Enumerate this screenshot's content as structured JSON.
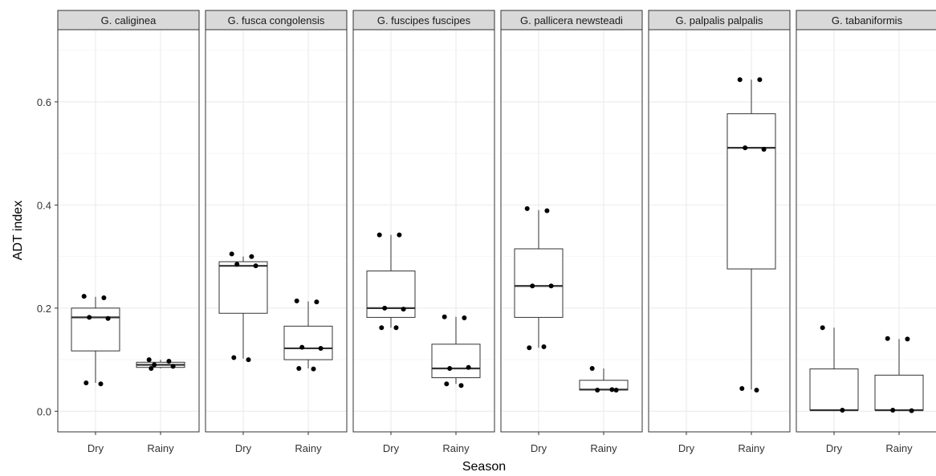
{
  "chart_data": {
    "type": "boxplot",
    "facet_by": "species",
    "xlabel": "Season",
    "ylabel": "ADT index",
    "categories": [
      "Dry",
      "Rainy"
    ],
    "ylim": [
      -0.04,
      0.74
    ],
    "yticks": [
      0.0,
      0.2,
      0.4,
      0.6
    ],
    "ytick_labels": [
      "0.0",
      "0.2",
      "0.4",
      "0.6"
    ],
    "grid": true,
    "theme": "bw",
    "panels": [
      {
        "name": "G. caliginea",
        "boxes": [
          {
            "category": "Dry",
            "min": 0.055,
            "q1": 0.117,
            "median": 0.182,
            "q3": 0.2,
            "max": 0.222
          },
          {
            "category": "Rainy",
            "min": 0.083,
            "q1": 0.085,
            "median": 0.09,
            "q3": 0.095,
            "max": 0.1
          }
        ],
        "points": [
          {
            "category": "Dry",
            "value": 0.223
          },
          {
            "category": "Dry",
            "value": 0.22
          },
          {
            "category": "Dry",
            "value": 0.182
          },
          {
            "category": "Dry",
            "value": 0.18
          },
          {
            "category": "Dry",
            "value": 0.055
          },
          {
            "category": "Dry",
            "value": 0.053
          },
          {
            "category": "Rainy",
            "value": 0.1
          },
          {
            "category": "Rainy",
            "value": 0.097
          },
          {
            "category": "Rainy",
            "value": 0.09
          },
          {
            "category": "Rainy",
            "value": 0.087
          },
          {
            "category": "Rainy",
            "value": 0.083
          }
        ]
      },
      {
        "name": "G. fusca congolensis",
        "boxes": [
          {
            "category": "Dry",
            "min": 0.102,
            "q1": 0.19,
            "median": 0.282,
            "q3": 0.29,
            "max": 0.3
          },
          {
            "category": "Rainy",
            "min": 0.083,
            "q1": 0.1,
            "median": 0.122,
            "q3": 0.165,
            "max": 0.213
          }
        ],
        "points": [
          {
            "category": "Dry",
            "value": 0.305
          },
          {
            "category": "Dry",
            "value": 0.3
          },
          {
            "category": "Dry",
            "value": 0.285
          },
          {
            "category": "Dry",
            "value": 0.282
          },
          {
            "category": "Dry",
            "value": 0.104
          },
          {
            "category": "Dry",
            "value": 0.1
          },
          {
            "category": "Rainy",
            "value": 0.214
          },
          {
            "category": "Rainy",
            "value": 0.212
          },
          {
            "category": "Rainy",
            "value": 0.124
          },
          {
            "category": "Rainy",
            "value": 0.122
          },
          {
            "category": "Rainy",
            "value": 0.083
          },
          {
            "category": "Rainy",
            "value": 0.082
          }
        ]
      },
      {
        "name": "G. fuscipes fuscipes",
        "boxes": [
          {
            "category": "Dry",
            "min": 0.162,
            "q1": 0.182,
            "median": 0.2,
            "q3": 0.272,
            "max": 0.342
          },
          {
            "category": "Rainy",
            "min": 0.053,
            "q1": 0.065,
            "median": 0.083,
            "q3": 0.13,
            "max": 0.183
          }
        ],
        "points": [
          {
            "category": "Dry",
            "value": 0.342
          },
          {
            "category": "Dry",
            "value": 0.342
          },
          {
            "category": "Dry",
            "value": 0.2
          },
          {
            "category": "Dry",
            "value": 0.198
          },
          {
            "category": "Dry",
            "value": 0.162
          },
          {
            "category": "Dry",
            "value": 0.162
          },
          {
            "category": "Rainy",
            "value": 0.183
          },
          {
            "category": "Rainy",
            "value": 0.181
          },
          {
            "category": "Rainy",
            "value": 0.083
          },
          {
            "category": "Rainy",
            "value": 0.085
          },
          {
            "category": "Rainy",
            "value": 0.053
          },
          {
            "category": "Rainy",
            "value": 0.05
          }
        ]
      },
      {
        "name": "G. pallicera newsteadi",
        "boxes": [
          {
            "category": "Dry",
            "min": 0.123,
            "q1": 0.182,
            "median": 0.243,
            "q3": 0.315,
            "max": 0.39
          },
          {
            "category": "Rainy",
            "min": 0.041,
            "q1": 0.041,
            "median": 0.042,
            "q3": 0.06,
            "max": 0.083
          }
        ],
        "points": [
          {
            "category": "Dry",
            "value": 0.393
          },
          {
            "category": "Dry",
            "value": 0.389
          },
          {
            "category": "Dry",
            "value": 0.243
          },
          {
            "category": "Dry",
            "value": 0.243
          },
          {
            "category": "Dry",
            "value": 0.123
          },
          {
            "category": "Dry",
            "value": 0.125
          },
          {
            "category": "Rainy",
            "value": 0.083
          },
          {
            "category": "Rainy",
            "value": 0.042
          },
          {
            "category": "Rainy",
            "value": 0.041
          },
          {
            "category": "Rainy",
            "value": 0.041
          }
        ]
      },
      {
        "name": "G. palpalis palpalis",
        "boxes": [
          {
            "category": "Rainy",
            "min": 0.042,
            "q1": 0.276,
            "median": 0.511,
            "q3": 0.577,
            "max": 0.643
          }
        ],
        "points": [
          {
            "category": "Rainy",
            "value": 0.643
          },
          {
            "category": "Rainy",
            "value": 0.643
          },
          {
            "category": "Rainy",
            "value": 0.511
          },
          {
            "category": "Rainy",
            "value": 0.508
          },
          {
            "category": "Rainy",
            "value": 0.044
          },
          {
            "category": "Rainy",
            "value": 0.041
          }
        ]
      },
      {
        "name": "G. tabaniformis",
        "boxes": [
          {
            "category": "Dry",
            "min": 0.0,
            "q1": 0.002,
            "median": 0.002,
            "q3": 0.082,
            "max": 0.162
          },
          {
            "category": "Rainy",
            "min": 0.0,
            "q1": 0.002,
            "median": 0.002,
            "q3": 0.07,
            "max": 0.14
          }
        ],
        "points": [
          {
            "category": "Dry",
            "value": 0.162
          },
          {
            "category": "Dry",
            "value": 0.002
          },
          {
            "category": "Rainy",
            "value": 0.141
          },
          {
            "category": "Rainy",
            "value": 0.14
          },
          {
            "category": "Rainy",
            "value": 0.002
          },
          {
            "category": "Rainy",
            "value": 0.001
          }
        ]
      }
    ]
  },
  "style": {
    "panel_border": "#333333",
    "strip_fill": "#d9d9d9",
    "grid_major": "#ebebeb",
    "grid_minor": "#f5f5f5",
    "box_line": "#333333",
    "point_color": "#000000"
  }
}
